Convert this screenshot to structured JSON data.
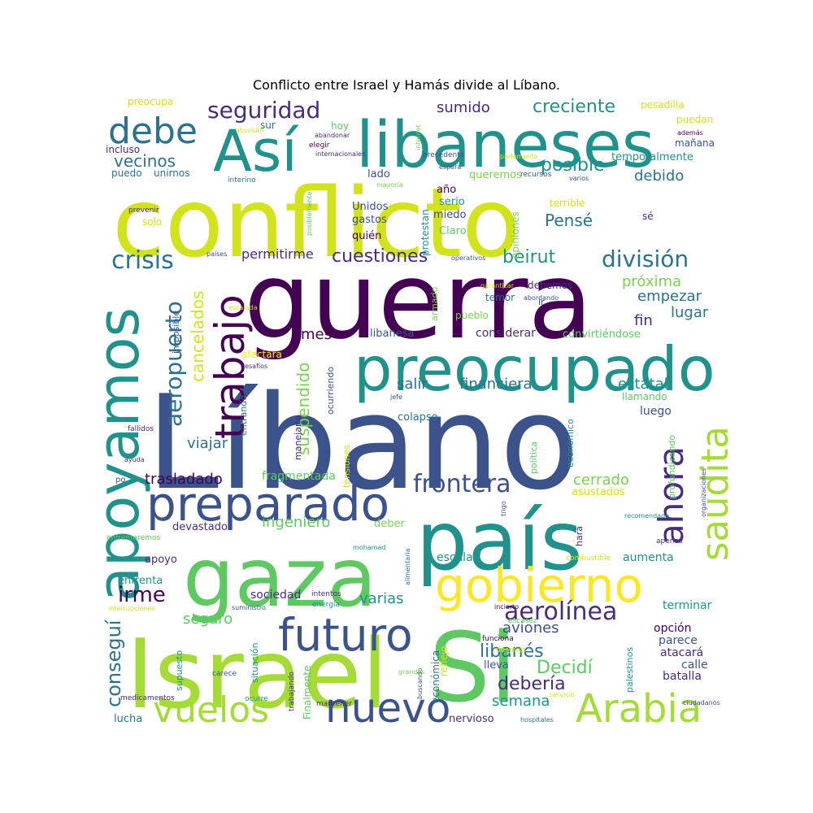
{
  "title": "Conflicto entre Israel y Hamás divide al Líbano.",
  "palette": [
    "#440154",
    "#3b528b",
    "#21918c",
    "#5ec962",
    "#fde725",
    "#a5db36",
    "#2c728e",
    "#7ad151",
    "#472d7b",
    "#d2e21b"
  ],
  "words": [
    {
      "text": "conflicto",
      "level": 1.0,
      "color": "#d2e21b"
    },
    {
      "text": "Líbano",
      "level": 1.0,
      "color": "#3b528b"
    },
    {
      "text": "guerra",
      "level": 0.95,
      "color": "#440154"
    },
    {
      "text": "Israel",
      "level": 0.9,
      "color": "#a5db36"
    },
    {
      "text": "Si",
      "level": 0.85,
      "color": "#5ec962"
    },
    {
      "text": "país",
      "level": 0.85,
      "color": "#21918c"
    },
    {
      "text": "gaza",
      "level": 0.85,
      "color": "#5ec962"
    },
    {
      "text": "libaneses",
      "level": 0.75,
      "color": "#21918c"
    },
    {
      "text": "preocupado",
      "level": 0.7,
      "color": "#21918c"
    },
    {
      "text": "apoyamos",
      "level": 0.7,
      "color": "#21918c"
    },
    {
      "text": "preparado",
      "level": 0.6,
      "color": "#3b528b"
    },
    {
      "text": "gobierno",
      "level": 0.6,
      "color": "#fde725"
    },
    {
      "text": "Así",
      "level": 0.6,
      "color": "#21918c"
    },
    {
      "text": "futuro",
      "level": 0.5,
      "color": "#3b528b"
    },
    {
      "text": "nuevo",
      "level": 0.5,
      "color": "#3b528b"
    },
    {
      "text": "Arabia",
      "level": 0.5,
      "color": "#a5db36"
    },
    {
      "text": "vuelos",
      "level": 0.5,
      "color": "#a5db36"
    },
    {
      "text": "trabajo",
      "level": 0.5,
      "color": "#440154"
    },
    {
      "text": "saudita",
      "level": 0.45,
      "color": "#a5db36"
    },
    {
      "text": "ahora",
      "level": 0.45,
      "color": "#472d7b"
    },
    {
      "text": "debe",
      "level": 0.45,
      "color": "#2c728e"
    },
    {
      "text": "aeropuerto",
      "level": 0.35,
      "color": "#2c728e"
    },
    {
      "text": "frontera",
      "level": 0.35,
      "color": "#3b528b"
    },
    {
      "text": "seguridad",
      "level": 0.3,
      "color": "#472d7b"
    },
    {
      "text": "aerolínea",
      "level": 0.3,
      "color": "#472d7b"
    },
    {
      "text": "crisis",
      "level": 0.3,
      "color": "#2c728e"
    },
    {
      "text": "división",
      "level": 0.3,
      "color": "#2c728e"
    },
    {
      "text": "libanés",
      "level": 0.28,
      "color": "#2c728e"
    },
    {
      "text": "cuestiones",
      "level": 0.25,
      "color": "#472d7b"
    },
    {
      "text": "irme",
      "level": 0.25,
      "color": "#440154"
    },
    {
      "text": "conseguí",
      "level": 0.25,
      "color": "#2c728e"
    },
    {
      "text": "beirut",
      "level": 0.25,
      "color": "#21918c"
    },
    {
      "text": "debería",
      "level": 0.25,
      "color": "#472d7b"
    },
    {
      "text": "Decidí",
      "level": 0.25,
      "color": "#5ec962"
    },
    {
      "text": "creciente",
      "level": 0.25,
      "color": "#21918c"
    },
    {
      "text": "posible",
      "level": 0.25,
      "color": "#21918c"
    },
    {
      "text": "Pensé",
      "level": 0.25,
      "color": "#2c728e"
    },
    {
      "text": "vecinos",
      "level": 0.22,
      "color": "#2c728e"
    },
    {
      "text": "cancelados",
      "level": 0.22,
      "color": "#d2e21b"
    },
    {
      "text": "suspendido",
      "level": 0.22,
      "color": "#7ad151"
    },
    {
      "text": "semana",
      "level": 0.22,
      "color": "#21918c"
    },
    {
      "text": "aviones",
      "level": 0.22,
      "color": "#3b528b"
    },
    {
      "text": "sumido",
      "level": 0.22,
      "color": "#472d7b"
    },
    {
      "text": "debido",
      "level": 0.2,
      "color": "#2c728e"
    },
    {
      "text": "próxima",
      "level": 0.2,
      "color": "#7ad151"
    },
    {
      "text": "empezar",
      "level": 0.2,
      "color": "#2c728e"
    },
    {
      "text": "lugar",
      "level": 0.2,
      "color": "#2c728e"
    },
    {
      "text": "fin",
      "level": 0.2,
      "color": "#472d7b"
    },
    {
      "text": "estatal",
      "level": 0.2,
      "color": "#21918c"
    },
    {
      "text": "financiera",
      "level": 0.2,
      "color": "#2c728e"
    },
    {
      "text": "salir",
      "level": 0.2,
      "color": "#2c728e"
    },
    {
      "text": "trasladado",
      "level": 0.2,
      "color": "#440154"
    },
    {
      "text": "viajar",
      "level": 0.2,
      "color": "#2c728e"
    },
    {
      "text": "cerrado",
      "level": 0.2,
      "color": "#7ad151"
    },
    {
      "text": "ingeniero",
      "level": 0.2,
      "color": "#5ec962"
    },
    {
      "text": "varias",
      "level": 0.2,
      "color": "#21918c"
    },
    {
      "text": "seguro",
      "level": 0.2,
      "color": "#5ec962"
    },
    {
      "text": "mes",
      "level": 0.2,
      "color": "#440154"
    },
    {
      "text": "permitirme",
      "level": 0.18,
      "color": "#472d7b"
    },
    {
      "text": "fragmentada",
      "level": 0.16,
      "color": "#5ec962"
    },
    {
      "text": "sociedad",
      "level": 0.16,
      "color": "#472d7b"
    },
    {
      "text": "opción",
      "level": 0.16,
      "color": "#440154"
    },
    {
      "text": "atacará",
      "level": 0.16,
      "color": "#472d7b"
    },
    {
      "text": "calle",
      "level": 0.16,
      "color": "#3b528b"
    },
    {
      "text": "batalla",
      "level": 0.16,
      "color": "#472d7b"
    },
    {
      "text": "parece",
      "level": 0.16,
      "color": "#3b528b"
    },
    {
      "text": "terminar",
      "level": 0.16,
      "color": "#21918c"
    },
    {
      "text": "aumenta",
      "level": 0.16,
      "color": "#21918c"
    },
    {
      "text": "escalar",
      "level": 0.16,
      "color": "#21918c"
    },
    {
      "text": "luego",
      "level": 0.16,
      "color": "#3b528b"
    },
    {
      "text": "convirtiéndose",
      "level": 0.14,
      "color": "#5ec962"
    },
    {
      "text": "considerar",
      "level": 0.16,
      "color": "#472d7b"
    },
    {
      "text": "libanesa",
      "level": 0.14,
      "color": "#3b528b"
    },
    {
      "text": "colapso",
      "level": 0.14,
      "color": "#2c728e"
    },
    {
      "text": "nervioso",
      "level": 0.14,
      "color": "#472d7b"
    },
    {
      "text": "lucha",
      "level": 0.14,
      "color": "#2c728e"
    },
    {
      "text": "lleva",
      "level": 0.14,
      "color": "#3b528b"
    },
    {
      "text": "apoyo",
      "level": 0.14,
      "color": "#472d7b"
    },
    {
      "text": "enfrenta",
      "level": 0.14,
      "color": "#21918c"
    },
    {
      "text": "devastado",
      "level": 0.14,
      "color": "#472d7b"
    },
    {
      "text": "deber",
      "level": 0.14,
      "color": "#7ad151"
    },
    {
      "text": "asustados",
      "level": 0.14,
      "color": "#d2e21b"
    },
    {
      "text": "Unidos",
      "level": 0.14,
      "color": "#3b528b"
    },
    {
      "text": "gastos",
      "level": 0.14,
      "color": "#3b528b"
    },
    {
      "text": "quién",
      "level": 0.14,
      "color": "#440154"
    },
    {
      "text": "Claro",
      "level": 0.14,
      "color": "#5ec962"
    },
    {
      "text": "miedo",
      "level": 0.14,
      "color": "#3b528b"
    },
    {
      "text": "serio",
      "level": 0.14,
      "color": "#21918c"
    },
    {
      "text": "año",
      "level": 0.14,
      "color": "#440154"
    },
    {
      "text": "queremos",
      "level": 0.14,
      "color": "#7ad151"
    },
    {
      "text": "lado",
      "level": 0.14,
      "color": "#3b528b"
    },
    {
      "text": "sur",
      "level": 0.14,
      "color": "#2c728e"
    },
    {
      "text": "hoy",
      "level": 0.14,
      "color": "#5ec962"
    },
    {
      "text": "incluso",
      "level": 0.13,
      "color": "#472d7b"
    },
    {
      "text": "puedo",
      "level": 0.13,
      "color": "#2c728e"
    },
    {
      "text": "unirnos",
      "level": 0.13,
      "color": "#2c728e"
    },
    {
      "text": "solo",
      "level": 0.13,
      "color": "#d2e21b"
    },
    {
      "text": "debemos",
      "level": 0.13,
      "color": "#472d7b"
    },
    {
      "text": "temor",
      "level": 0.13,
      "color": "#2c728e"
    },
    {
      "text": "pueblo",
      "level": 0.13,
      "color": "#7ad151"
    },
    {
      "text": "llamando",
      "level": 0.13,
      "color": "#5ec962"
    },
    {
      "text": "mañana",
      "level": 0.13,
      "color": "#3b528b"
    },
    {
      "text": "temporalmente",
      "level": 0.13,
      "color": "#21918c"
    },
    {
      "text": "pesadilla",
      "level": 0.13,
      "color": "#d2e21b"
    },
    {
      "text": "puedan",
      "level": 0.13,
      "color": "#d2e21b"
    },
    {
      "text": "terrible",
      "level": 0.13,
      "color": "#d2e21b"
    },
    {
      "text": "sé",
      "level": 0.13,
      "color": "#472d7b"
    },
    {
      "text": "preocupa",
      "level": 0.13,
      "color": "#d2e21b"
    },
    {
      "text": "afectará",
      "level": 0.13,
      "color": "#fde725"
    },
    {
      "text": "imposible",
      "level": 0.12,
      "color": "#3b528b"
    },
    {
      "text": "entrando",
      "level": 0.12,
      "color": "#2c728e"
    },
    {
      "text": "manejarlo",
      "level": 0.12,
      "color": "#472d7b"
    },
    {
      "text": "ocurriendo",
      "level": 0.12,
      "color": "#3b528b"
    },
    {
      "text": "tensiones",
      "level": 0.12,
      "color": "#d2e21b"
    },
    {
      "text": "política",
      "level": 0.12,
      "color": "#5ec962"
    },
    {
      "text": "económico",
      "level": 0.12,
      "color": "#21918c"
    },
    {
      "text": "protestan",
      "level": 0.12,
      "color": "#21918c"
    },
    {
      "text": "opiniones",
      "level": 0.12,
      "color": "#7ad151"
    },
    {
      "text": "armado",
      "level": 0.12,
      "color": "#7ad151"
    },
    {
      "text": "ir",
      "level": 0.12,
      "color": "#3b528b"
    },
    {
      "text": "hará",
      "level": 0.12,
      "color": "#472d7b"
    },
    {
      "text": "profundizando",
      "level": 0.12,
      "color": "#5ec962"
    },
    {
      "text": "palestinos",
      "level": 0.12,
      "color": "#21918c"
    },
    {
      "text": "reflejo",
      "level": 0.12,
      "color": "#d2e21b"
    },
    {
      "text": "económica",
      "level": 0.12,
      "color": "#2c728e"
    },
    {
      "text": "supuesto",
      "level": 0.12,
      "color": "#21918c"
    },
    {
      "text": "situación",
      "level": 0.12,
      "color": "#21918c"
    },
    {
      "text": "Finalmente",
      "level": 0.12,
      "color": "#5ec962"
    },
    {
      "text": "fallidos",
      "level": 0.1,
      "color": "#472d7b"
    },
    {
      "text": "medicamentos",
      "level": 0.1,
      "color": "#472d7b"
    },
    {
      "text": "ocurre",
      "level": 0.1,
      "color": "#21918c"
    },
    {
      "text": "trabajando",
      "level": 0.09,
      "color": "#472d7b"
    },
    {
      "text": "mantener",
      "level": 0.09,
      "color": "#472d7b"
    },
    {
      "text": "carece",
      "level": 0.1,
      "color": "#3b528b"
    },
    {
      "text": "suministro",
      "level": 0.09,
      "color": "#3b528b"
    },
    {
      "text": "intentos",
      "level": 0.1,
      "color": "#472d7b"
    },
    {
      "text": "energía",
      "level": 0.1,
      "color": "#21918c"
    },
    {
      "text": "buscando",
      "level": 0.09,
      "color": "#3b528b"
    },
    {
      "text": "grandes",
      "level": 0.09,
      "color": "#7ad151"
    },
    {
      "text": "funciona",
      "level": 0.1,
      "color": "#440154"
    },
    {
      "text": "escasez",
      "level": 0.1,
      "color": "#5ec962"
    },
    {
      "text": "incierto",
      "level": 0.09,
      "color": "#440154"
    },
    {
      "text": "después",
      "level": 0.1,
      "color": "#d2e21b"
    },
    {
      "text": "servicio",
      "level": 0.09,
      "color": "#d2e21b"
    },
    {
      "text": "hospitales",
      "level": 0.09,
      "color": "#2c728e"
    },
    {
      "text": "ciudadanos",
      "level": 0.09,
      "color": "#3b528b"
    },
    {
      "text": "interrupciones",
      "level": 0.09,
      "color": "#d2e21b"
    },
    {
      "text": "enfrentaremos",
      "level": 0.09,
      "color": "#5ec962"
    },
    {
      "text": "ayuda",
      "level": 0.08,
      "color": "#472d7b"
    },
    {
      "text": "po",
      "level": 0.1,
      "color": "#3b528b"
    },
    {
      "text": "mohamad",
      "level": 0.08,
      "color": "#21918c"
    },
    {
      "text": "alimentaria",
      "level": 0.08,
      "color": "#2c728e"
    },
    {
      "text": "combustible",
      "level": 0.09,
      "color": "#d2e21b"
    },
    {
      "text": "apenas",
      "level": 0.09,
      "color": "#472d7b"
    },
    {
      "text": "recomendado",
      "level": 0.08,
      "color": "#21918c"
    },
    {
      "text": "organizaciones",
      "level": 0.08,
      "color": "#3b528b"
    },
    {
      "text": "trigo",
      "level": 0.08,
      "color": "#3b528b"
    },
    {
      "text": "jefe",
      "level": 0.08,
      "color": "#3b528b"
    },
    {
      "text": "desafíos",
      "level": 0.08,
      "color": "#472d7b"
    },
    {
      "text": "escalada",
      "level": 0.08,
      "color": "#d2e21b"
    },
    {
      "text": "garantizar",
      "level": 0.08,
      "color": "#d2e21b"
    },
    {
      "text": "abordando",
      "level": 0.08,
      "color": "#3b528b"
    },
    {
      "text": "operativos",
      "level": 0.08,
      "color": "#3b528b"
    },
    {
      "text": "países",
      "level": 0.08,
      "color": "#3b528b"
    },
    {
      "text": "posiblemente",
      "level": 0.08,
      "color": "#5ec962"
    },
    {
      "text": "prevenir",
      "level": 0.09,
      "color": "#472d7b"
    },
    {
      "text": "interino",
      "level": 0.09,
      "color": "#2c728e"
    },
    {
      "text": "elegir",
      "level": 0.09,
      "color": "#440154"
    },
    {
      "text": "internacionales",
      "level": 0.08,
      "color": "#472d7b"
    },
    {
      "text": "abandonar",
      "level": 0.08,
      "color": "#472d7b"
    },
    {
      "text": "absoluto",
      "level": 0.08,
      "color": "#d2e21b"
    },
    {
      "text": "internet",
      "level": 0.08,
      "color": "#7ad151"
    },
    {
      "text": "precedente",
      "level": 0.09,
      "color": "#3b528b"
    },
    {
      "text": "espera",
      "level": 0.08,
      "color": "#3b528b"
    },
    {
      "text": "mayoría",
      "level": 0.08,
      "color": "#7ad151"
    },
    {
      "text": "recursos",
      "level": 0.09,
      "color": "#3b528b"
    },
    {
      "text": "varios",
      "level": 0.08,
      "color": "#3b528b"
    },
    {
      "text": "parlamento",
      "level": 0.08,
      "color": "#d2e21b"
    },
    {
      "text": "además",
      "level": 0.08,
      "color": "#440154"
    }
  ]
}
